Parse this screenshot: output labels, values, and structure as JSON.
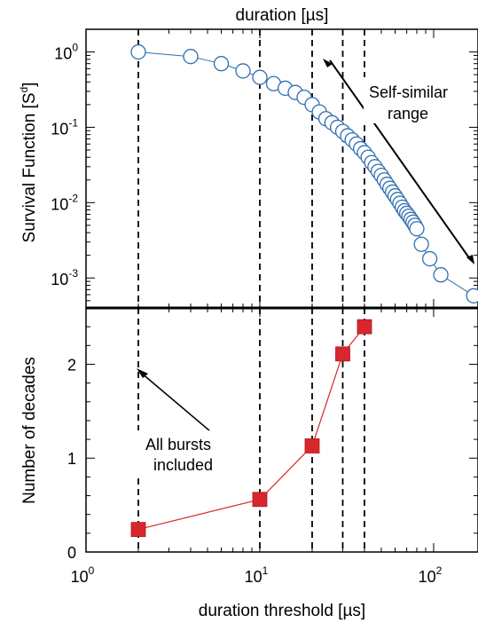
{
  "chart_data": [
    {
      "type": "scatter",
      "panel": "top",
      "title": "duration [µs]",
      "ylabel": "Survival Function [S",
      "ylabel_sup": "d",
      "ylabel_close": "]",
      "x_scale": "log",
      "y_scale": "log",
      "xlim": [
        1,
        180
      ],
      "ylim": [
        0.0004,
        2.0
      ],
      "y_ticks": [
        {
          "value": 1,
          "base": "10",
          "exp": "0"
        },
        {
          "value": 0.1,
          "base": "10",
          "exp": "-1"
        },
        {
          "value": 0.01,
          "base": "10",
          "exp": "-2"
        },
        {
          "value": 0.001,
          "base": "10",
          "exp": "-3"
        }
      ],
      "marker": "open-circle",
      "color": "#2f6fb0",
      "x": [
        2,
        4,
        6,
        8,
        10,
        12,
        14,
        16,
        18,
        20,
        22,
        24,
        26,
        28,
        30,
        32,
        34,
        36,
        38,
        40,
        42,
        44,
        46,
        48,
        50,
        52,
        54,
        56,
        58,
        60,
        62,
        64,
        66,
        68,
        70,
        72,
        74,
        76,
        78,
        80,
        85,
        95,
        110,
        170
      ],
      "y": [
        1.0,
        0.87,
        0.7,
        0.56,
        0.46,
        0.38,
        0.33,
        0.29,
        0.25,
        0.2,
        0.16,
        0.13,
        0.115,
        0.1,
        0.088,
        0.077,
        0.068,
        0.06,
        0.052,
        0.046,
        0.04,
        0.034,
        0.03,
        0.026,
        0.023,
        0.02,
        0.0175,
        0.0155,
        0.0138,
        0.0123,
        0.011,
        0.0098,
        0.0087,
        0.0078,
        0.0072,
        0.0066,
        0.006,
        0.0055,
        0.005,
        0.0045,
        0.0028,
        0.0018,
        0.0011,
        0.00058
      ],
      "annotations": [
        {
          "text_lines": [
            "Self-similar",
            "range"
          ]
        }
      ]
    },
    {
      "type": "line",
      "panel": "bottom",
      "xlabel": "duration threshold [µs]",
      "ylabel": "Number of decades",
      "x_scale": "log",
      "xlim": [
        1,
        180
      ],
      "ylim": [
        0,
        2.6
      ],
      "x_ticks": [
        {
          "value": 1,
          "base": "10",
          "exp": "0"
        },
        {
          "value": 10,
          "base": "10",
          "exp": "1"
        },
        {
          "value": 100,
          "base": "10",
          "exp": "2"
        }
      ],
      "y_ticks": [
        0,
        1,
        2
      ],
      "marker": "filled-square",
      "color": "#d9262c",
      "x": [
        2,
        10,
        20,
        30,
        40
      ],
      "y": [
        0.24,
        0.56,
        1.13,
        2.11,
        2.4
      ],
      "annotations": [
        {
          "text_lines": [
            "All bursts",
            "included"
          ]
        }
      ]
    }
  ],
  "vertical_dashed_lines_x": [
    2,
    10,
    20,
    30,
    40
  ]
}
